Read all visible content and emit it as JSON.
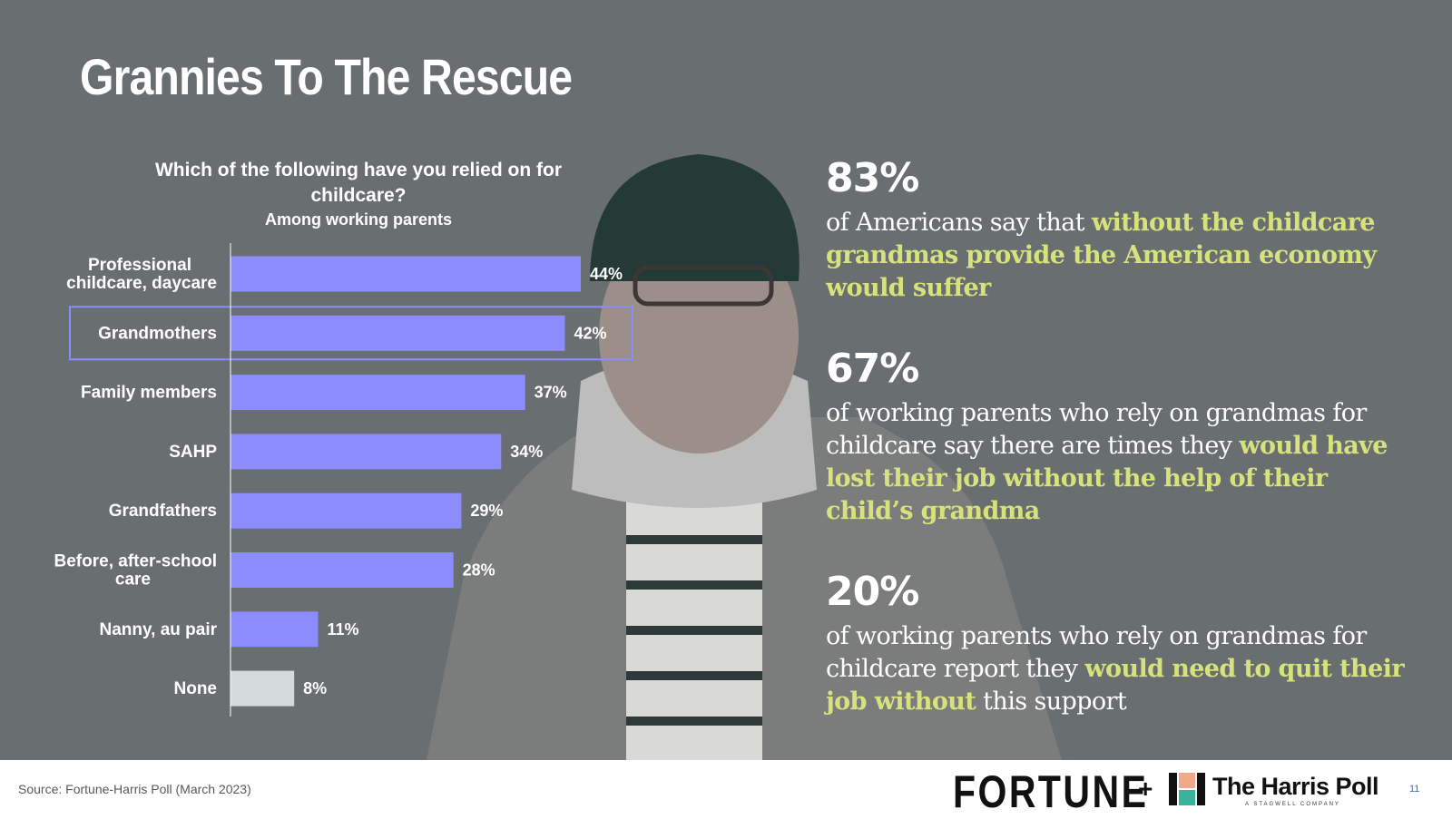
{
  "title": "Grannies To The Rescue",
  "chart_data": {
    "type": "bar",
    "orientation": "horizontal",
    "title": "Which of the following have you relied on for childcare?",
    "subtitle": "Among working parents",
    "categories": [
      "Professional childcare, daycare",
      "Grandmothers",
      "Family members",
      "SAHP",
      "Grandfathers",
      "Before, after-school care",
      "Nanny, au pair",
      "None"
    ],
    "values": [
      44,
      42,
      37,
      34,
      29,
      28,
      11,
      8
    ],
    "value_labels": [
      "44%",
      "42%",
      "37%",
      "34%",
      "29%",
      "28%",
      "11%",
      "8%"
    ],
    "unit": "%",
    "xlim": [
      0,
      50
    ],
    "highlighted_category": "Grandmothers",
    "colors": {
      "bar": "#8c8cff",
      "none_bar": "#d5dadd",
      "highlight_box": "#8c8cff"
    },
    "grid": false
  },
  "stats": [
    {
      "pct": "83%",
      "segments": [
        {
          "text": "of Americans say that ",
          "hl": false
        },
        {
          "text": "without the childcare grandmas provide the American economy would suffer",
          "hl": true
        }
      ]
    },
    {
      "pct": "67%",
      "segments": [
        {
          "text": "of working parents who rely on grandmas for childcare say there are times they ",
          "hl": false
        },
        {
          "text": "would have lost their job without the help of their child’s grandma",
          "hl": true
        }
      ]
    },
    {
      "pct": "20%",
      "segments": [
        {
          "text": "of working parents who rely on grandmas for childcare report they ",
          "hl": false
        },
        {
          "text": "would need to quit their job without",
          "hl": true
        },
        {
          "text": " this support",
          "hl": false
        }
      ]
    }
  ],
  "colors": {
    "background": "#696e71",
    "highlight_text": "#d7e27d"
  },
  "footer": {
    "source": "Source: Fortune-Harris Poll (March 2023)",
    "fortune_logo": "FORTUNE",
    "plus": "+",
    "harris_logo": "The Harris Poll",
    "harris_tagline": "A STAGWELL COMPANY",
    "page_number": "11"
  }
}
